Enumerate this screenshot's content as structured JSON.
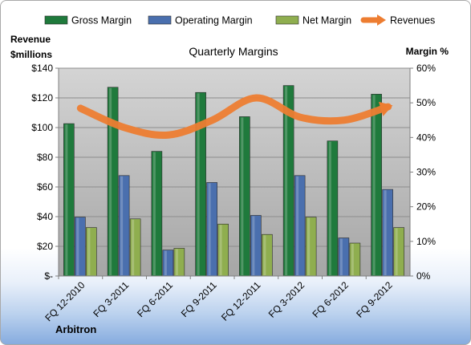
{
  "chart_data": {
    "type": "bar",
    "title": "Quarterly Margins",
    "categories": [
      "FQ 12-2010",
      "FQ 3-2011",
      "FQ 6-2011",
      "FQ 9-2011",
      "FQ 12-2011",
      "FQ 3-2012",
      "FQ 6-2012",
      "FQ 9-2012"
    ],
    "series": [
      {
        "name": "Gross Margin",
        "type": "bar",
        "axis": "right",
        "color": "#1f7a3c",
        "values": [
          44.0,
          54.5,
          36.0,
          53.0,
          46.0,
          55.0,
          39.0,
          52.5
        ]
      },
      {
        "name": "Operating Margin",
        "type": "bar",
        "axis": "right",
        "color": "#4a6fae",
        "values": [
          17.0,
          29.0,
          7.5,
          27.0,
          17.5,
          29.0,
          11.0,
          25.0
        ]
      },
      {
        "name": "Net Margin",
        "type": "bar",
        "axis": "right",
        "color": "#8fae4f",
        "values": [
          14.0,
          16.5,
          8.0,
          15.0,
          12.0,
          17.0,
          9.5,
          14.0
        ]
      },
      {
        "name": "Revenues",
        "type": "line",
        "axis": "left",
        "color": "#ed7d31",
        "values": [
          113,
          100,
          95,
          105,
          120,
          107,
          105,
          114
        ]
      }
    ],
    "y_left": {
      "label_line1": "Revenue",
      "label_line2": "$millions",
      "ylim": [
        0,
        140
      ],
      "ticks": [
        "$-",
        "$20",
        "$40",
        "$60",
        "$80",
        "$100",
        "$120",
        "$140"
      ]
    },
    "y_right": {
      "label": "Margin %",
      "ylim": [
        0,
        60
      ],
      "ticks": [
        "0%",
        "10%",
        "20%",
        "30%",
        "40%",
        "50%",
        "60%"
      ]
    },
    "legend_position": "top",
    "grid": true,
    "plot_background": "#c0c0c0"
  },
  "footer": {
    "company": "Arbitron"
  }
}
